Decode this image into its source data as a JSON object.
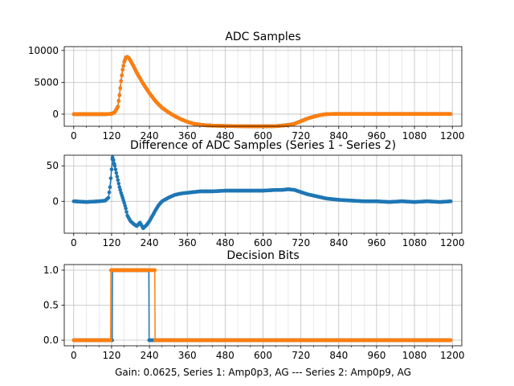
{
  "figure": {
    "footer": "Gain: 0.0625, Series 1: Amp0p3, AG --- Series 2: Amp0p9, AG"
  },
  "colors": {
    "series1": "#1f77b4",
    "series2": "#ff7f0e",
    "grid": "#b0b0b0",
    "axis": "#000000"
  },
  "chart_data": [
    {
      "type": "scatter",
      "title": "ADC Samples",
      "xlabel": "",
      "ylabel": "",
      "xlim": [
        -30,
        1230
      ],
      "ylim": [
        -1900,
        10600
      ],
      "x_ticks": [
        0,
        120,
        240,
        360,
        480,
        600,
        720,
        840,
        960,
        1080,
        1200
      ],
      "y_ticks": [
        0,
        5000,
        10000
      ],
      "grid": true,
      "minor_x_grid": true,
      "series": [
        {
          "color": "series1",
          "x": [
            0,
            100,
            120,
            130,
            140,
            145,
            150,
            155,
            160,
            165,
            170,
            175,
            180,
            190,
            200,
            220,
            240,
            260,
            280,
            300,
            320,
            340,
            360,
            380,
            400,
            420,
            440,
            480,
            520,
            560,
            600,
            640,
            680,
            700,
            720,
            740,
            760,
            780,
            800,
            820,
            840,
            900,
            960,
            1020,
            1080,
            1140,
            1195
          ],
          "values": [
            0,
            0,
            50,
            300,
            1200,
            3000,
            5200,
            7000,
            8200,
            8900,
            9000,
            8800,
            8400,
            7500,
            6500,
            4800,
            3300,
            2000,
            1000,
            300,
            -300,
            -800,
            -1200,
            -1500,
            -1650,
            -1750,
            -1800,
            -1850,
            -1880,
            -1900,
            -1900,
            -1880,
            -1700,
            -1500,
            -1100,
            -700,
            -400,
            -150,
            0,
            30,
            30,
            30,
            30,
            30,
            30,
            30,
            30
          ]
        },
        {
          "color": "series2",
          "x": [
            0,
            100,
            120,
            130,
            140,
            145,
            150,
            155,
            160,
            165,
            170,
            175,
            180,
            190,
            200,
            220,
            240,
            260,
            280,
            300,
            320,
            340,
            360,
            380,
            400,
            420,
            440,
            480,
            520,
            560,
            600,
            640,
            680,
            700,
            720,
            740,
            760,
            780,
            800,
            820,
            840,
            900,
            960,
            1020,
            1080,
            1140,
            1195
          ],
          "values": [
            0,
            0,
            40,
            260,
            1150,
            2950,
            5150,
            6950,
            8150,
            8850,
            8980,
            8780,
            8390,
            7490,
            6490,
            4790,
            3290,
            1990,
            990,
            290,
            -310,
            -810,
            -1210,
            -1510,
            -1660,
            -1760,
            -1810,
            -1860,
            -1890,
            -1910,
            -1910,
            -1890,
            -1715,
            -1515,
            -1115,
            -715,
            -410,
            -155,
            -3,
            28,
            30,
            30,
            30,
            30,
            30,
            30,
            30
          ]
        }
      ]
    },
    {
      "type": "scatter",
      "title": "Difference of ADC Samples (Series 1 - Series 2)",
      "xlabel": "",
      "ylabel": "",
      "xlim": [
        -30,
        1230
      ],
      "ylim": [
        -45,
        65
      ],
      "x_ticks": [
        0,
        120,
        240,
        360,
        480,
        600,
        720,
        840,
        960,
        1080,
        1200
      ],
      "y_ticks": [
        0,
        50
      ],
      "grid": true,
      "minor_x_grid": true,
      "series": [
        {
          "color": "series1",
          "x": [
            0,
            40,
            80,
            100,
            110,
            115,
            120,
            123,
            126,
            130,
            135,
            140,
            145,
            150,
            155,
            160,
            165,
            170,
            180,
            190,
            200,
            210,
            220,
            230,
            240,
            250,
            260,
            270,
            280,
            300,
            320,
            340,
            360,
            380,
            400,
            440,
            480,
            520,
            560,
            600,
            640,
            660,
            680,
            700,
            720,
            740,
            760,
            780,
            800,
            840,
            880,
            920,
            960,
            1000,
            1040,
            1080,
            1120,
            1160,
            1195
          ],
          "values": [
            0,
            -1,
            0,
            1,
            5,
            20,
            45,
            62,
            58,
            50,
            40,
            30,
            20,
            12,
            5,
            -2,
            -10,
            -20,
            -28,
            -32,
            -35,
            -30,
            -38,
            -34,
            -28,
            -20,
            -12,
            -5,
            0,
            5,
            9,
            11,
            12,
            13,
            14,
            14,
            15,
            15,
            15,
            15,
            16,
            16,
            17,
            16,
            13,
            10,
            8,
            6,
            4,
            2,
            1,
            0,
            0,
            -1,
            0,
            -1,
            0,
            -1,
            0
          ]
        }
      ]
    },
    {
      "type": "scatter",
      "title": "Decision Bits",
      "xlabel": "Gain: 0.0625, Series 1: Amp0p3, AG --- Series 2: Amp0p9, AG",
      "ylabel": "",
      "xlim": [
        -30,
        1230
      ],
      "ylim": [
        -0.08,
        1.08
      ],
      "x_ticks": [
        0,
        120,
        240,
        360,
        480,
        600,
        720,
        840,
        960,
        1080,
        1200
      ],
      "y_ticks": [
        0.0,
        0.5,
        1.0
      ],
      "grid": true,
      "minor_x_grid": true,
      "series": [
        {
          "color": "series1",
          "step": true,
          "x": [
            0,
            122,
            123,
            238,
            239,
            1195
          ],
          "values": [
            0,
            0,
            1,
            1,
            0,
            0
          ]
        },
        {
          "color": "series2",
          "step": true,
          "x": [
            0,
            117,
            118,
            257,
            258,
            1195
          ],
          "values": [
            0,
            0,
            1,
            1,
            0,
            0
          ]
        }
      ]
    }
  ]
}
